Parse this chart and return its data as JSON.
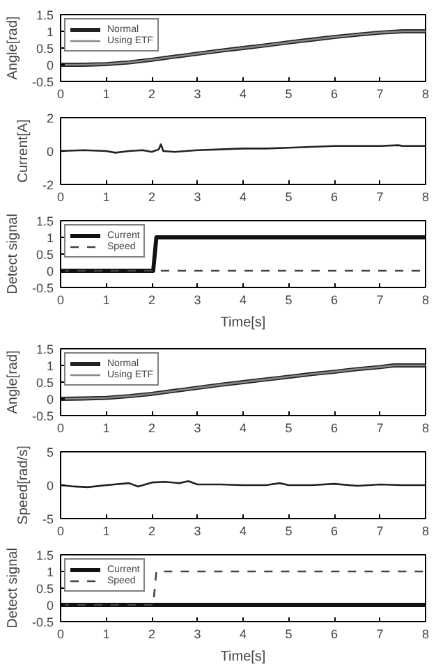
{
  "chart_data": [
    {
      "type": "line",
      "ylabel": "Angle[rad]",
      "xlim": [
        0,
        8
      ],
      "ylim": [
        -0.5,
        1.5
      ],
      "xticks": [
        0,
        1,
        2,
        3,
        4,
        5,
        6,
        7,
        8
      ],
      "yticks": [
        -0.5,
        0,
        0.5,
        1,
        1.5
      ],
      "grid": false,
      "legend": "top left",
      "x": [
        0,
        0.5,
        1,
        1.5,
        2,
        2.5,
        3,
        3.5,
        4,
        4.5,
        5,
        5.5,
        6,
        6.5,
        7,
        7.5,
        8
      ],
      "series": [
        {
          "name": "Normal",
          "color": "#222222",
          "values": [
            0,
            0,
            0.02,
            0.07,
            0.15,
            0.24,
            0.33,
            0.42,
            0.5,
            0.58,
            0.67,
            0.75,
            0.83,
            0.9,
            0.96,
            1.0,
            1.0
          ]
        },
        {
          "name": "Using ETF",
          "color": "#888888",
          "values": [
            0,
            0,
            0.02,
            0.07,
            0.15,
            0.24,
            0.33,
            0.42,
            0.5,
            0.58,
            0.67,
            0.75,
            0.83,
            0.9,
            0.96,
            1.0,
            1.0
          ]
        }
      ]
    },
    {
      "type": "line",
      "ylabel": "Current[A]",
      "xlim": [
        0,
        8
      ],
      "ylim": [
        -2,
        2
      ],
      "xticks": [
        0,
        1,
        2,
        3,
        4,
        5,
        6,
        7,
        8
      ],
      "yticks": [
        -2,
        0,
        2
      ],
      "grid": false,
      "x": [
        0,
        0.5,
        1,
        1.2,
        1.5,
        1.8,
        2,
        2.15,
        2.2,
        2.25,
        2.5,
        3,
        3.5,
        4,
        4.5,
        5,
        5.5,
        6,
        6.5,
        7,
        7.4,
        7.5,
        8
      ],
      "series": [
        {
          "color": "#222222",
          "values": [
            0,
            0.05,
            0,
            -0.1,
            0,
            0.05,
            -0.05,
            0.1,
            0.4,
            0,
            -0.05,
            0.05,
            0.1,
            0.15,
            0.15,
            0.2,
            0.25,
            0.3,
            0.3,
            0.3,
            0.35,
            0.3,
            0.3
          ]
        }
      ]
    },
    {
      "type": "line",
      "xlabel": "Time[s]",
      "ylabel": "Detect signal",
      "xlim": [
        0,
        8
      ],
      "ylim": [
        -0.5,
        1.5
      ],
      "xticks": [
        0,
        1,
        2,
        3,
        4,
        5,
        6,
        7,
        8
      ],
      "yticks": [
        -0.5,
        0,
        0.5,
        1,
        1.5
      ],
      "grid": false,
      "legend": "top left",
      "series": [
        {
          "name": "Current",
          "color": "#111111",
          "line_style": "solid",
          "x": [
            0,
            2.03,
            2.1,
            8
          ],
          "values": [
            0,
            0,
            1,
            1
          ]
        },
        {
          "name": "Speed",
          "color": "#444444",
          "line_style": "dashed",
          "x": [
            0,
            8
          ],
          "values": [
            0,
            0
          ]
        }
      ]
    },
    {
      "type": "line",
      "ylabel": "Angle[rad]",
      "xlim": [
        0,
        8
      ],
      "ylim": [
        -0.5,
        1.5
      ],
      "xticks": [
        0,
        1,
        2,
        3,
        4,
        5,
        6,
        7,
        8
      ],
      "yticks": [
        -0.5,
        0,
        0.5,
        1,
        1.5
      ],
      "grid": false,
      "legend": "top left",
      "x": [
        0,
        0.5,
        1,
        1.5,
        2,
        2.5,
        3,
        3.5,
        4,
        4.5,
        5,
        5.5,
        6,
        6.5,
        7,
        7.3,
        8
      ],
      "series": [
        {
          "name": "Normal",
          "color": "#222222",
          "values": [
            0,
            0.01,
            0.03,
            0.08,
            0.15,
            0.24,
            0.33,
            0.42,
            0.5,
            0.58,
            0.66,
            0.74,
            0.81,
            0.89,
            0.95,
            1.0,
            1.0
          ]
        },
        {
          "name": "Using ETF",
          "color": "#888888",
          "values": [
            0,
            0.01,
            0.03,
            0.08,
            0.15,
            0.24,
            0.33,
            0.42,
            0.5,
            0.58,
            0.66,
            0.74,
            0.81,
            0.89,
            0.95,
            1.0,
            1.0
          ]
        }
      ]
    },
    {
      "type": "line",
      "ylabel": "Speed[rad/s]",
      "xlim": [
        0,
        8
      ],
      "ylim": [
        -5,
        5
      ],
      "xticks": [
        0,
        1,
        2,
        3,
        4,
        5,
        6,
        7,
        8
      ],
      "yticks": [
        -5,
        0,
        5
      ],
      "grid": false,
      "x": [
        0,
        0.3,
        0.6,
        1,
        1.5,
        1.7,
        2,
        2.3,
        2.6,
        2.8,
        3,
        3.5,
        4,
        4.5,
        4.8,
        5,
        5.5,
        6,
        6.5,
        7,
        7.5,
        8
      ],
      "series": [
        {
          "color": "#222222",
          "values": [
            0,
            -0.2,
            -0.3,
            0,
            0.3,
            -0.2,
            0.4,
            0.5,
            0.3,
            0.6,
            0.1,
            0.1,
            0,
            0,
            0.3,
            0,
            0,
            0.2,
            -0.1,
            0.1,
            0,
            0
          ]
        }
      ]
    },
    {
      "type": "line",
      "xlabel": "Time[s]",
      "ylabel": "Detect signal",
      "xlim": [
        0,
        8
      ],
      "ylim": [
        -0.5,
        1.5
      ],
      "xticks": [
        0,
        1,
        2,
        3,
        4,
        5,
        6,
        7,
        8
      ],
      "yticks": [
        -0.5,
        0,
        0.5,
        1,
        1.5
      ],
      "grid": false,
      "legend": "top left",
      "series": [
        {
          "name": "Current",
          "color": "#111111",
          "line_style": "solid",
          "x": [
            0,
            8
          ],
          "values": [
            0,
            0
          ]
        },
        {
          "name": "Speed",
          "color": "#444444",
          "line_style": "dashed",
          "x": [
            0,
            2.03,
            2.1,
            8
          ],
          "values": [
            0,
            0,
            1,
            1
          ]
        }
      ]
    }
  ]
}
